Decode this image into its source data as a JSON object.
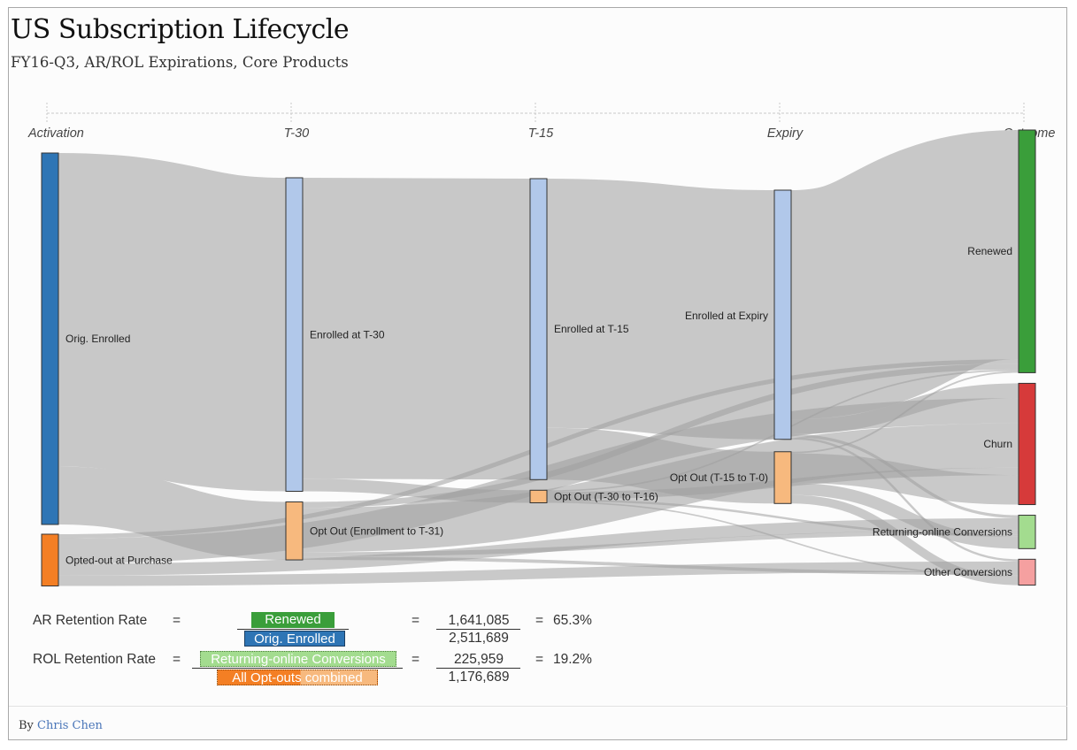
{
  "title": "US Subscription Lifecycle",
  "subtitle": "FY16-Q3, AR/ROL Expirations, Core Products",
  "byline": {
    "prefix": "By",
    "author": "Chris Chen"
  },
  "colors": {
    "link": "#c8c8c8",
    "link_dark": "#9e9e9e",
    "orig_enrolled": "#2e75b5",
    "enrolled": "#b1c8ea",
    "opted_out_purchase": "#f47f24",
    "opt_out": "#f7b97e",
    "renewed": "#3a9e3a",
    "churn": "#d63a3a",
    "returning_online": "#a3dc8f",
    "other_conversions": "#f5a0a0"
  },
  "chart_data": {
    "type": "sankey",
    "stages": [
      "Activation",
      "T-30",
      "T-15",
      "Expiry",
      "Outcome"
    ],
    "nodes": [
      {
        "id": "orig",
        "label": "Orig. Enrolled",
        "stage": 0,
        "value": 2511689,
        "color": "orig_enrolled"
      },
      {
        "id": "optp",
        "label": "Opted-out at Purchase",
        "stage": 0,
        "value": 350000,
        "color": "opted_out_purchase"
      },
      {
        "id": "e30",
        "label": "Enrolled at T-30",
        "stage": 1,
        "value": 2120000,
        "color": "enrolled"
      },
      {
        "id": "o30",
        "label": "Opt Out (Enrollment to T-31)",
        "stage": 1,
        "value": 392000,
        "color": "opt_out"
      },
      {
        "id": "e15",
        "label": "Enrolled at T-15",
        "stage": 2,
        "value": 2035000,
        "color": "enrolled"
      },
      {
        "id": "o15",
        "label": "Opt Out (T-30 to T-16)",
        "stage": 2,
        "value": 85000,
        "color": "opt_out"
      },
      {
        "id": "eexp",
        "label": "Enrolled at Expiry",
        "stage": 3,
        "value": 1685000,
        "color": "enrolled"
      },
      {
        "id": "o0",
        "label": "Opt Out (T-15 to T-0)",
        "stage": 3,
        "value": 350000,
        "color": "opt_out"
      },
      {
        "id": "ren",
        "label": "Renewed",
        "stage": 4,
        "value": 1641085,
        "color": "renewed"
      },
      {
        "id": "churn",
        "label": "Churn",
        "stage": 4,
        "value": 820000,
        "color": "churn"
      },
      {
        "id": "roc",
        "label": "Returning-online Conversions",
        "stage": 4,
        "value": 225959,
        "color": "returning_online"
      },
      {
        "id": "oc",
        "label": "Other Conversions",
        "stage": 4,
        "value": 175000,
        "color": "other_conversions"
      }
    ],
    "links": [
      {
        "source": "orig",
        "target": "e30",
        "value": 2120000
      },
      {
        "source": "orig",
        "target": "o30",
        "value": 392000
      },
      {
        "source": "e30",
        "target": "e15",
        "value": 2035000
      },
      {
        "source": "e30",
        "target": "o15",
        "value": 85000
      },
      {
        "source": "e15",
        "target": "eexp",
        "value": 1685000
      },
      {
        "source": "e15",
        "target": "o0",
        "value": 350000
      },
      {
        "source": "eexp",
        "target": "ren",
        "value": 1550000
      },
      {
        "source": "eexp",
        "target": "churn",
        "value": 100000
      },
      {
        "source": "eexp",
        "target": "roc",
        "value": 20000
      },
      {
        "source": "eexp",
        "target": "oc",
        "value": 15000
      },
      {
        "source": "optp",
        "target": "ren",
        "value": 30000
      },
      {
        "source": "optp",
        "target": "churn",
        "value": 170000
      },
      {
        "source": "optp",
        "target": "roc",
        "value": 80000
      },
      {
        "source": "optp",
        "target": "oc",
        "value": 70000
      },
      {
        "source": "o30",
        "target": "ren",
        "value": 40000
      },
      {
        "source": "o30",
        "target": "churn",
        "value": 300000
      },
      {
        "source": "o30",
        "target": "roc",
        "value": 30000
      },
      {
        "source": "o30",
        "target": "oc",
        "value": 22000
      },
      {
        "source": "o15",
        "target": "ren",
        "value": 10000
      },
      {
        "source": "o15",
        "target": "churn",
        "value": 50000
      },
      {
        "source": "o15",
        "target": "roc",
        "value": 15000
      },
      {
        "source": "o15",
        "target": "oc",
        "value": 10000
      },
      {
        "source": "o0",
        "target": "ren",
        "value": 11085
      },
      {
        "source": "o0",
        "target": "churn",
        "value": 200000
      },
      {
        "source": "o0",
        "target": "roc",
        "value": 80959
      },
      {
        "source": "o0",
        "target": "oc",
        "value": 58000
      }
    ]
  },
  "formulas": [
    {
      "label": "AR Retention Rate",
      "eq1": "=",
      "numerator": "Renewed",
      "denominator": "Orig. Enrolled",
      "eq2": "=",
      "num_value": "1,641,085",
      "den_value": "2,511,689",
      "eq3": "=",
      "result": "65.3%"
    },
    {
      "label": "ROL Retention Rate",
      "eq1": "=",
      "numerator": "Returning-online Conversions",
      "denominator": "All Opt-outs combined",
      "eq2": "=",
      "num_value": "225,959",
      "den_value": "1,176,689",
      "eq3": "=",
      "result": "19.2%"
    }
  ]
}
